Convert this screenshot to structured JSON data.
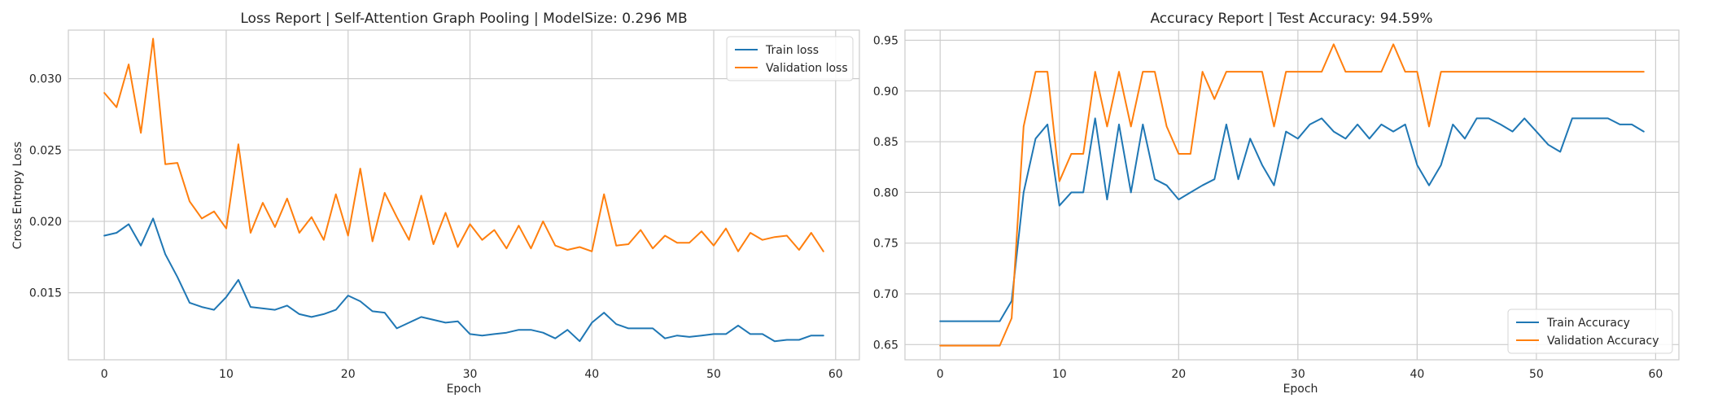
{
  "chart_data": [
    {
      "type": "line",
      "title": "Loss Report | Self-Attention Graph Pooling | ModelSize: 0.296 MB",
      "xlabel": "Epoch",
      "ylabel": "Cross Entropy Loss",
      "xlim": [
        -2.95,
        61.95
      ],
      "ylim": [
        0.0103,
        0.0334
      ],
      "xticks": [
        0,
        10,
        20,
        30,
        40,
        50,
        60
      ],
      "yticks": [
        0.015,
        0.02,
        0.025,
        0.03
      ],
      "xtick_labels": [
        "0",
        "10",
        "20",
        "30",
        "40",
        "50",
        "60"
      ],
      "ytick_labels": [
        "0.015",
        "0.020",
        "0.025",
        "0.030"
      ],
      "grid": true,
      "legend_position": "top-right",
      "series": [
        {
          "name": "Train loss",
          "color": "#1f77b4",
          "values": [
            0.019,
            0.0192,
            0.0198,
            0.0183,
            0.0202,
            0.0177,
            0.0161,
            0.0143,
            0.014,
            0.0138,
            0.0147,
            0.0159,
            0.014,
            0.0139,
            0.0138,
            0.0141,
            0.0135,
            0.0133,
            0.0135,
            0.0138,
            0.0148,
            0.0144,
            0.0137,
            0.0136,
            0.0125,
            0.0129,
            0.0133,
            0.0131,
            0.0129,
            0.013,
            0.0121,
            0.012,
            0.0121,
            0.0122,
            0.0124,
            0.0124,
            0.0122,
            0.0118,
            0.0124,
            0.0116,
            0.0129,
            0.0136,
            0.0128,
            0.0125,
            0.0125,
            0.0125,
            0.0118,
            0.012,
            0.0119,
            0.012,
            0.0121,
            0.0121,
            0.0127,
            0.0121,
            0.0121,
            0.0116,
            0.0117,
            0.0117,
            0.012,
            0.012
          ]
        },
        {
          "name": "Validation loss",
          "color": "#ff7f0e",
          "values": [
            0.029,
            0.028,
            0.031,
            0.0262,
            0.0328,
            0.024,
            0.0241,
            0.0214,
            0.0202,
            0.0207,
            0.0195,
            0.0254,
            0.0192,
            0.0213,
            0.0196,
            0.0216,
            0.0192,
            0.0203,
            0.0187,
            0.0219,
            0.019,
            0.0237,
            0.0186,
            0.022,
            0.0203,
            0.0187,
            0.0218,
            0.0184,
            0.0206,
            0.0182,
            0.0198,
            0.0187,
            0.0194,
            0.0181,
            0.0197,
            0.0181,
            0.02,
            0.0183,
            0.018,
            0.0182,
            0.0179,
            0.0219,
            0.0183,
            0.0184,
            0.0194,
            0.0181,
            0.019,
            0.0185,
            0.0185,
            0.0193,
            0.0183,
            0.0195,
            0.0179,
            0.0192,
            0.0187,
            0.0189,
            0.019,
            0.018,
            0.0192,
            0.0179
          ]
        }
      ]
    },
    {
      "type": "line",
      "title": "Accuracy Report | Test Accuracy: 94.59%",
      "xlabel": "Epoch",
      "ylabel": "",
      "xlim": [
        -2.95,
        61.95
      ],
      "ylim": [
        0.635,
        0.96
      ],
      "xticks": [
        0,
        10,
        20,
        30,
        40,
        50,
        60
      ],
      "yticks": [
        0.65,
        0.7,
        0.75,
        0.8,
        0.85,
        0.9,
        0.95
      ],
      "xtick_labels": [
        "0",
        "10",
        "20",
        "30",
        "40",
        "50",
        "60"
      ],
      "ytick_labels": [
        "0.65",
        "0.70",
        "0.75",
        "0.80",
        "0.85",
        "0.90",
        "0.95"
      ],
      "grid": true,
      "legend_position": "bottom-right",
      "series": [
        {
          "name": "Train Accuracy",
          "color": "#1f77b4",
          "values": [
            0.673,
            0.673,
            0.673,
            0.673,
            0.673,
            0.673,
            0.693,
            0.8,
            0.853,
            0.867,
            0.787,
            0.8,
            0.8,
            0.873,
            0.793,
            0.867,
            0.8,
            0.867,
            0.813,
            0.807,
            0.793,
            0.8,
            0.807,
            0.813,
            0.867,
            0.813,
            0.853,
            0.827,
            0.807,
            0.86,
            0.853,
            0.867,
            0.873,
            0.86,
            0.853,
            0.867,
            0.853,
            0.867,
            0.86,
            0.867,
            0.827,
            0.807,
            0.827,
            0.867,
            0.853,
            0.873,
            0.873,
            0.867,
            0.86,
            0.873,
            0.86,
            0.847,
            0.84,
            0.873,
            0.873,
            0.873,
            0.873,
            0.867,
            0.867,
            0.86
          ]
        },
        {
          "name": "Validation Accuracy",
          "color": "#ff7f0e",
          "values": [
            0.649,
            0.649,
            0.649,
            0.649,
            0.649,
            0.649,
            0.676,
            0.865,
            0.919,
            0.919,
            0.811,
            0.838,
            0.838,
            0.919,
            0.865,
            0.919,
            0.865,
            0.919,
            0.919,
            0.865,
            0.838,
            0.838,
            0.919,
            0.892,
            0.919,
            0.919,
            0.919,
            0.919,
            0.865,
            0.919,
            0.919,
            0.919,
            0.919,
            0.946,
            0.919,
            0.919,
            0.919,
            0.919,
            0.946,
            0.919,
            0.919,
            0.865,
            0.919,
            0.919,
            0.919,
            0.919,
            0.919,
            0.919,
            0.919,
            0.919,
            0.919,
            0.919,
            0.919,
            0.919,
            0.919,
            0.919,
            0.919,
            0.919,
            0.919,
            0.919
          ]
        }
      ]
    }
  ]
}
